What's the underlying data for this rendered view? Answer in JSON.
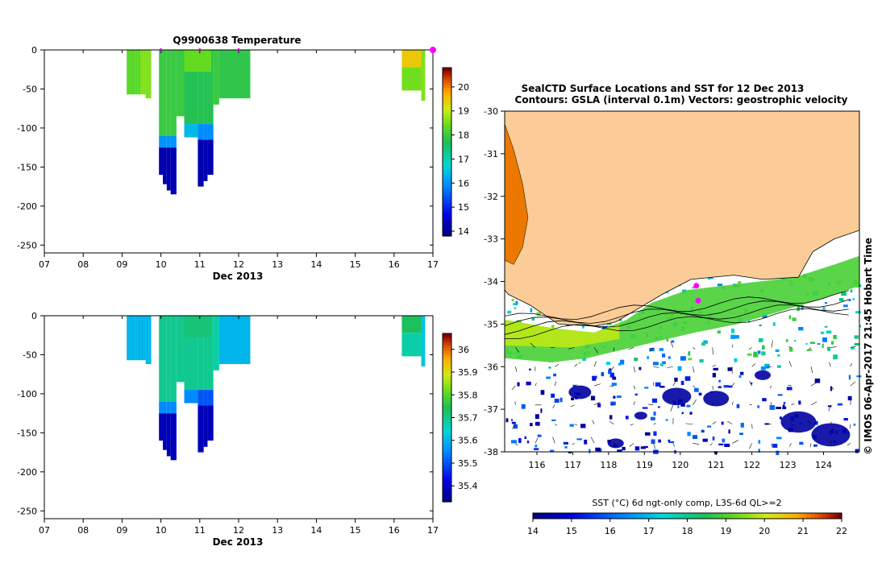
{
  "chart_data": [
    {
      "type": "heatmap",
      "title": "Q9900638  Temperature",
      "xlabel": "Dec 2013",
      "ylabel": "",
      "x_ticks": [
        "07",
        "08",
        "09",
        "10",
        "11",
        "12",
        "13",
        "14",
        "15",
        "16",
        "17"
      ],
      "xlim_days": [
        7,
        17
      ],
      "ylim": [
        -260,
        0
      ],
      "y_ticks": [
        0,
        -50,
        -100,
        -150,
        -200,
        -250
      ],
      "colorbar": {
        "min": 13.8,
        "max": 20.8,
        "ticks": [
          14,
          15,
          16,
          17,
          18,
          19,
          20
        ]
      },
      "profile_markers_days": [
        10.0,
        11.0,
        12.0,
        17.0
      ],
      "profiles": [
        {
          "day": 9.15,
          "depth": 57,
          "surface_value": 18.1
        },
        {
          "day": 10.2,
          "depth": 185,
          "surface_value": 18.0
        },
        {
          "day": 11.0,
          "depth": 175,
          "surface_value": 18.0
        },
        {
          "day": 12.0,
          "depth": 65,
          "surface_value": 17.9
        },
        {
          "day": 16.6,
          "depth": 65,
          "surface_value": 19.4
        }
      ]
    },
    {
      "type": "heatmap",
      "title": "",
      "xlabel": "Dec 2013",
      "ylabel": "",
      "x_ticks": [
        "07",
        "08",
        "09",
        "10",
        "11",
        "12",
        "13",
        "14",
        "15",
        "16",
        "17"
      ],
      "xlim_days": [
        7,
        17
      ],
      "ylim": [
        -260,
        0
      ],
      "y_ticks": [
        0,
        -50,
        -100,
        -150,
        -200,
        -250
      ],
      "colorbar": {
        "min": 35.33,
        "max": 36.07,
        "ticks": [
          35.4,
          35.5,
          35.6,
          35.7,
          35.8,
          35.9,
          36
        ]
      },
      "tick_labels": [
        "35.4",
        "35.5",
        "35.6",
        "35.7",
        "35.8",
        "35.9",
        "36"
      ],
      "profiles": [
        {
          "day": 9.15,
          "depth": 57,
          "surface_value": 35.6
        },
        {
          "day": 10.2,
          "depth": 185,
          "surface_value": 35.7
        },
        {
          "day": 11.0,
          "depth": 175,
          "surface_value": 35.7
        },
        {
          "day": 12.0,
          "depth": 65,
          "surface_value": 35.6
        },
        {
          "day": 16.6,
          "depth": 65,
          "surface_value": 35.7
        }
      ]
    },
    {
      "type": "heatmap",
      "title": "SealCTD Surface Locations and SST for 12 Dec 2013",
      "subtitle": "Contours: GSLA (interval 0.1m)  Vectors: geostrophic velocity",
      "x_ticks": [
        "116",
        "117",
        "118",
        "119",
        "120",
        "121",
        "122",
        "123",
        "124"
      ],
      "xlim": [
        115.1,
        125.0
      ],
      "y_ticks": [
        "-30",
        "-31",
        "-32",
        "-33",
        "-34",
        "-35",
        "-36",
        "-37",
        "-38"
      ],
      "ylim": [
        -38,
        -30
      ],
      "colorbar_label": "SST (°C) 6d ngt-only comp, L3S-6d QL>=2",
      "colorbar": {
        "min": 14,
        "max": 22,
        "ticks": [
          "14",
          "15",
          "16",
          "17",
          "18",
          "19",
          "20",
          "21",
          "22"
        ]
      },
      "side_label": "© IMOS 06-Apr-2017 21:45 Hobart Time",
      "seal_locations": [
        [
          120.45,
          -34.1
        ],
        [
          120.5,
          -34.45
        ]
      ]
    }
  ]
}
